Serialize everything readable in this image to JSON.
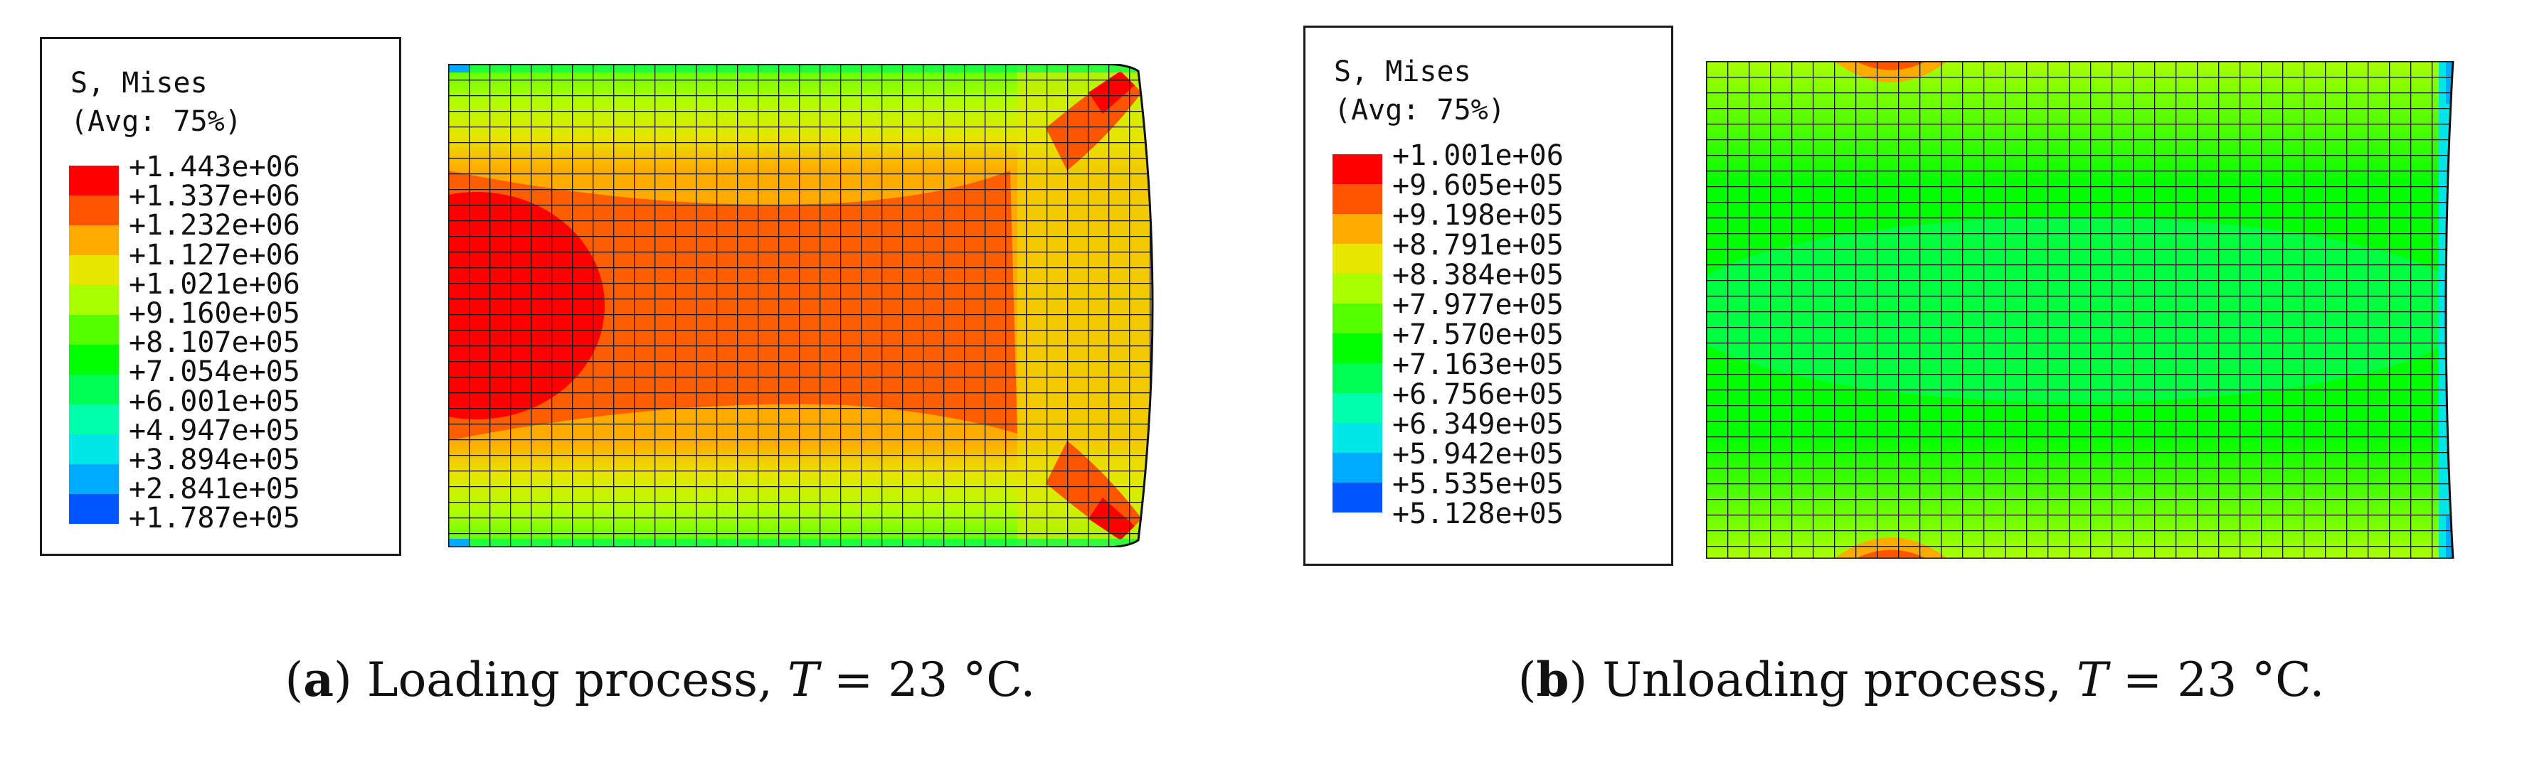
{
  "panels": [
    {
      "id": "a",
      "legend": {
        "title_line1": "S, Mises",
        "title_line2": "(Avg: 75%)",
        "values": [
          "+1.443e+06",
          "+1.337e+06",
          "+1.232e+06",
          "+1.127e+06",
          "+1.021e+06",
          "+9.160e+05",
          "+8.107e+05",
          "+7.054e+05",
          "+6.001e+05",
          "+4.947e+05",
          "+3.894e+05",
          "+2.841e+05",
          "+1.787e+05"
        ]
      },
      "caption": {
        "letter": "a",
        "open": "(",
        "close": ")",
        "text": " Loading process, ",
        "var": "T",
        "rest": " = 23 °C."
      }
    },
    {
      "id": "b",
      "legend": {
        "title_line1": "S, Mises",
        "title_line2": "(Avg: 75%)",
        "values": [
          "+1.001e+06",
          "+9.605e+05",
          "+9.198e+05",
          "+8.791e+05",
          "+8.384e+05",
          "+7.977e+05",
          "+7.570e+05",
          "+7.163e+05",
          "+6.756e+05",
          "+6.349e+05",
          "+5.942e+05",
          "+5.535e+05",
          "+5.128e+05"
        ]
      },
      "caption": {
        "letter": "b",
        "open": "(",
        "close": ")",
        "text": " Unloading process, ",
        "var": "T",
        "rest": " = 23 °C."
      }
    }
  ],
  "colormap": [
    "#ff0000",
    "#ff5500",
    "#ffaa00",
    "#e6e600",
    "#aaff00",
    "#55ff00",
    "#00ff00",
    "#00ff55",
    "#00ffaa",
    "#00e6e6",
    "#00aaff",
    "#0055ff",
    "#0000ff"
  ]
}
